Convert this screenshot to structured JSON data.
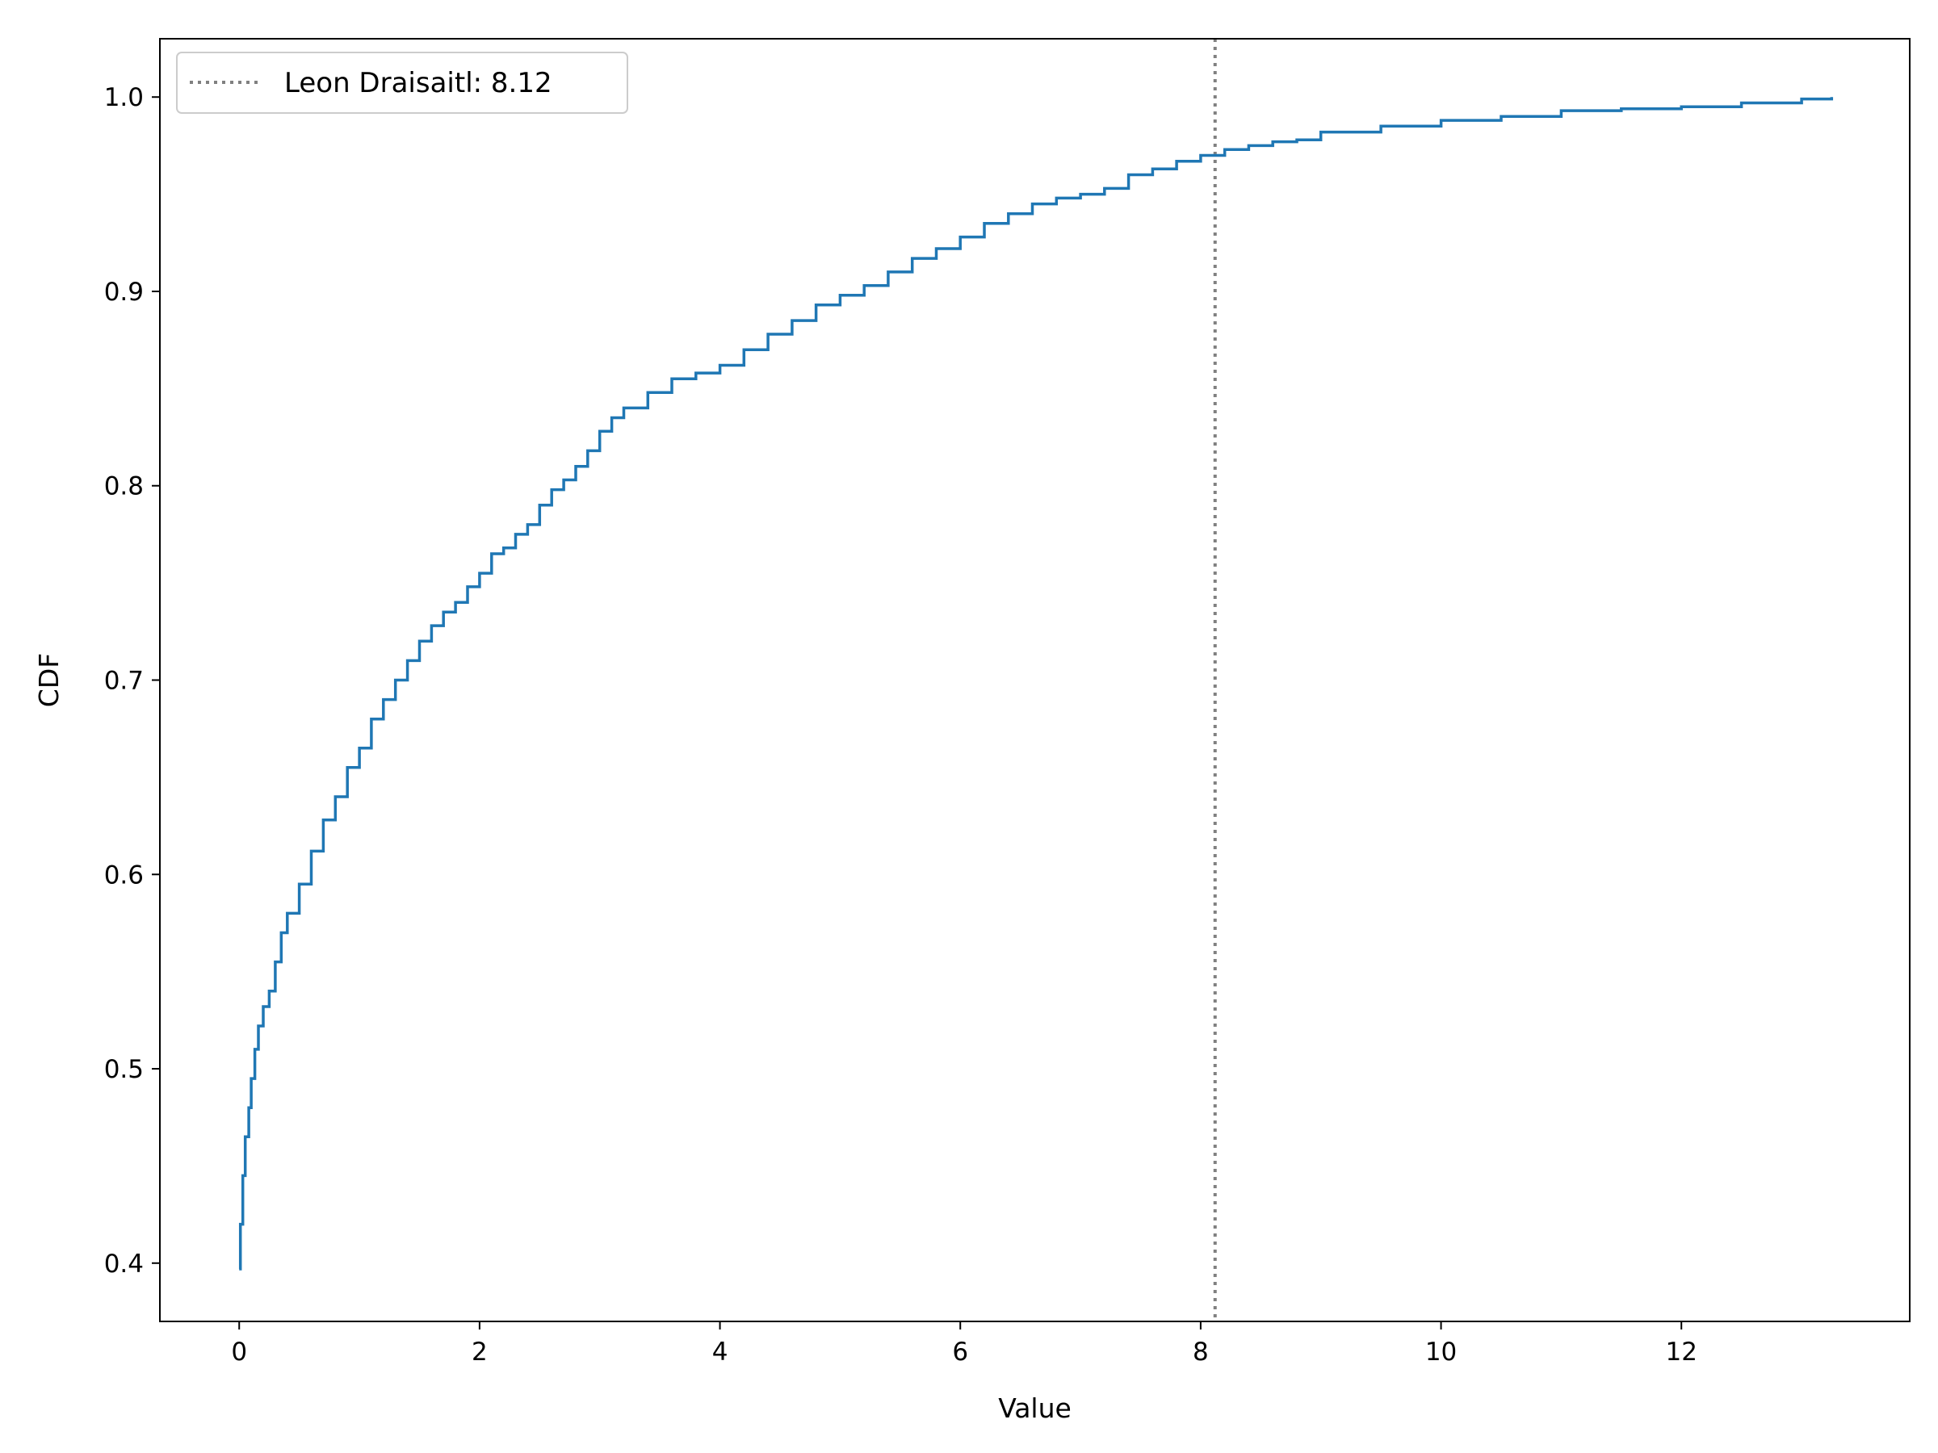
{
  "chart_data": {
    "type": "line",
    "title": "",
    "xlabel": "Value",
    "ylabel": "CDF",
    "xlim": [
      -0.66,
      13.9
    ],
    "ylim": [
      0.37,
      1.03
    ],
    "xticks": [
      0,
      2,
      4,
      6,
      8,
      10,
      12
    ],
    "yticks": [
      0.4,
      0.5,
      0.6,
      0.7,
      0.8,
      0.9,
      1.0
    ],
    "xtick_labels": [
      "0",
      "2",
      "4",
      "6",
      "8",
      "10",
      "12"
    ],
    "ytick_labels": [
      "0.4",
      "0.5",
      "0.6",
      "0.7",
      "0.8",
      "0.9",
      "1.0"
    ],
    "grid": false,
    "legend": {
      "position": "top-left",
      "entries": [
        "Leon Draisaitl: 8.12"
      ]
    },
    "series": [
      {
        "style": "step",
        "color": "#1f77b4",
        "x": [
          0,
          0.01,
          0.03,
          0.05,
          0.08,
          0.1,
          0.13,
          0.16,
          0.2,
          0.25,
          0.3,
          0.35,
          0.4,
          0.5,
          0.6,
          0.7,
          0.8,
          0.9,
          1.0,
          1.1,
          1.2,
          1.3,
          1.4,
          1.5,
          1.6,
          1.7,
          1.8,
          1.9,
          2.0,
          2.1,
          2.2,
          2.3,
          2.4,
          2.5,
          2.6,
          2.7,
          2.8,
          2.9,
          3.0,
          3.1,
          3.2,
          3.4,
          3.6,
          3.8,
          4.0,
          4.2,
          4.4,
          4.6,
          4.8,
          5.0,
          5.2,
          5.4,
          5.6,
          5.8,
          6.0,
          6.2,
          6.4,
          6.6,
          6.8,
          7.0,
          7.2,
          7.4,
          7.6,
          7.8,
          8.0,
          8.2,
          8.4,
          8.6,
          8.8,
          9.0,
          9.5,
          10.0,
          10.5,
          11.0,
          11.5,
          12.0,
          12.5,
          13.0,
          13.25
        ],
        "y": [
          0.397,
          0.42,
          0.445,
          0.465,
          0.48,
          0.495,
          0.51,
          0.522,
          0.532,
          0.54,
          0.555,
          0.57,
          0.58,
          0.595,
          0.612,
          0.628,
          0.64,
          0.655,
          0.665,
          0.68,
          0.69,
          0.7,
          0.71,
          0.72,
          0.728,
          0.735,
          0.74,
          0.748,
          0.755,
          0.765,
          0.768,
          0.775,
          0.78,
          0.79,
          0.798,
          0.803,
          0.81,
          0.818,
          0.828,
          0.835,
          0.84,
          0.848,
          0.855,
          0.858,
          0.862,
          0.87,
          0.878,
          0.885,
          0.893,
          0.898,
          0.903,
          0.91,
          0.917,
          0.922,
          0.928,
          0.935,
          0.94,
          0.945,
          0.948,
          0.95,
          0.953,
          0.96,
          0.963,
          0.967,
          0.97,
          0.973,
          0.975,
          0.977,
          0.978,
          0.982,
          0.985,
          0.988,
          0.99,
          0.993,
          0.994,
          0.995,
          0.997,
          0.999,
          1.0
        ]
      }
    ],
    "reference_line": {
      "x": 8.12,
      "label": "Leon Draisaitl: 8.12",
      "color": "#808080",
      "style": "dotted"
    }
  }
}
